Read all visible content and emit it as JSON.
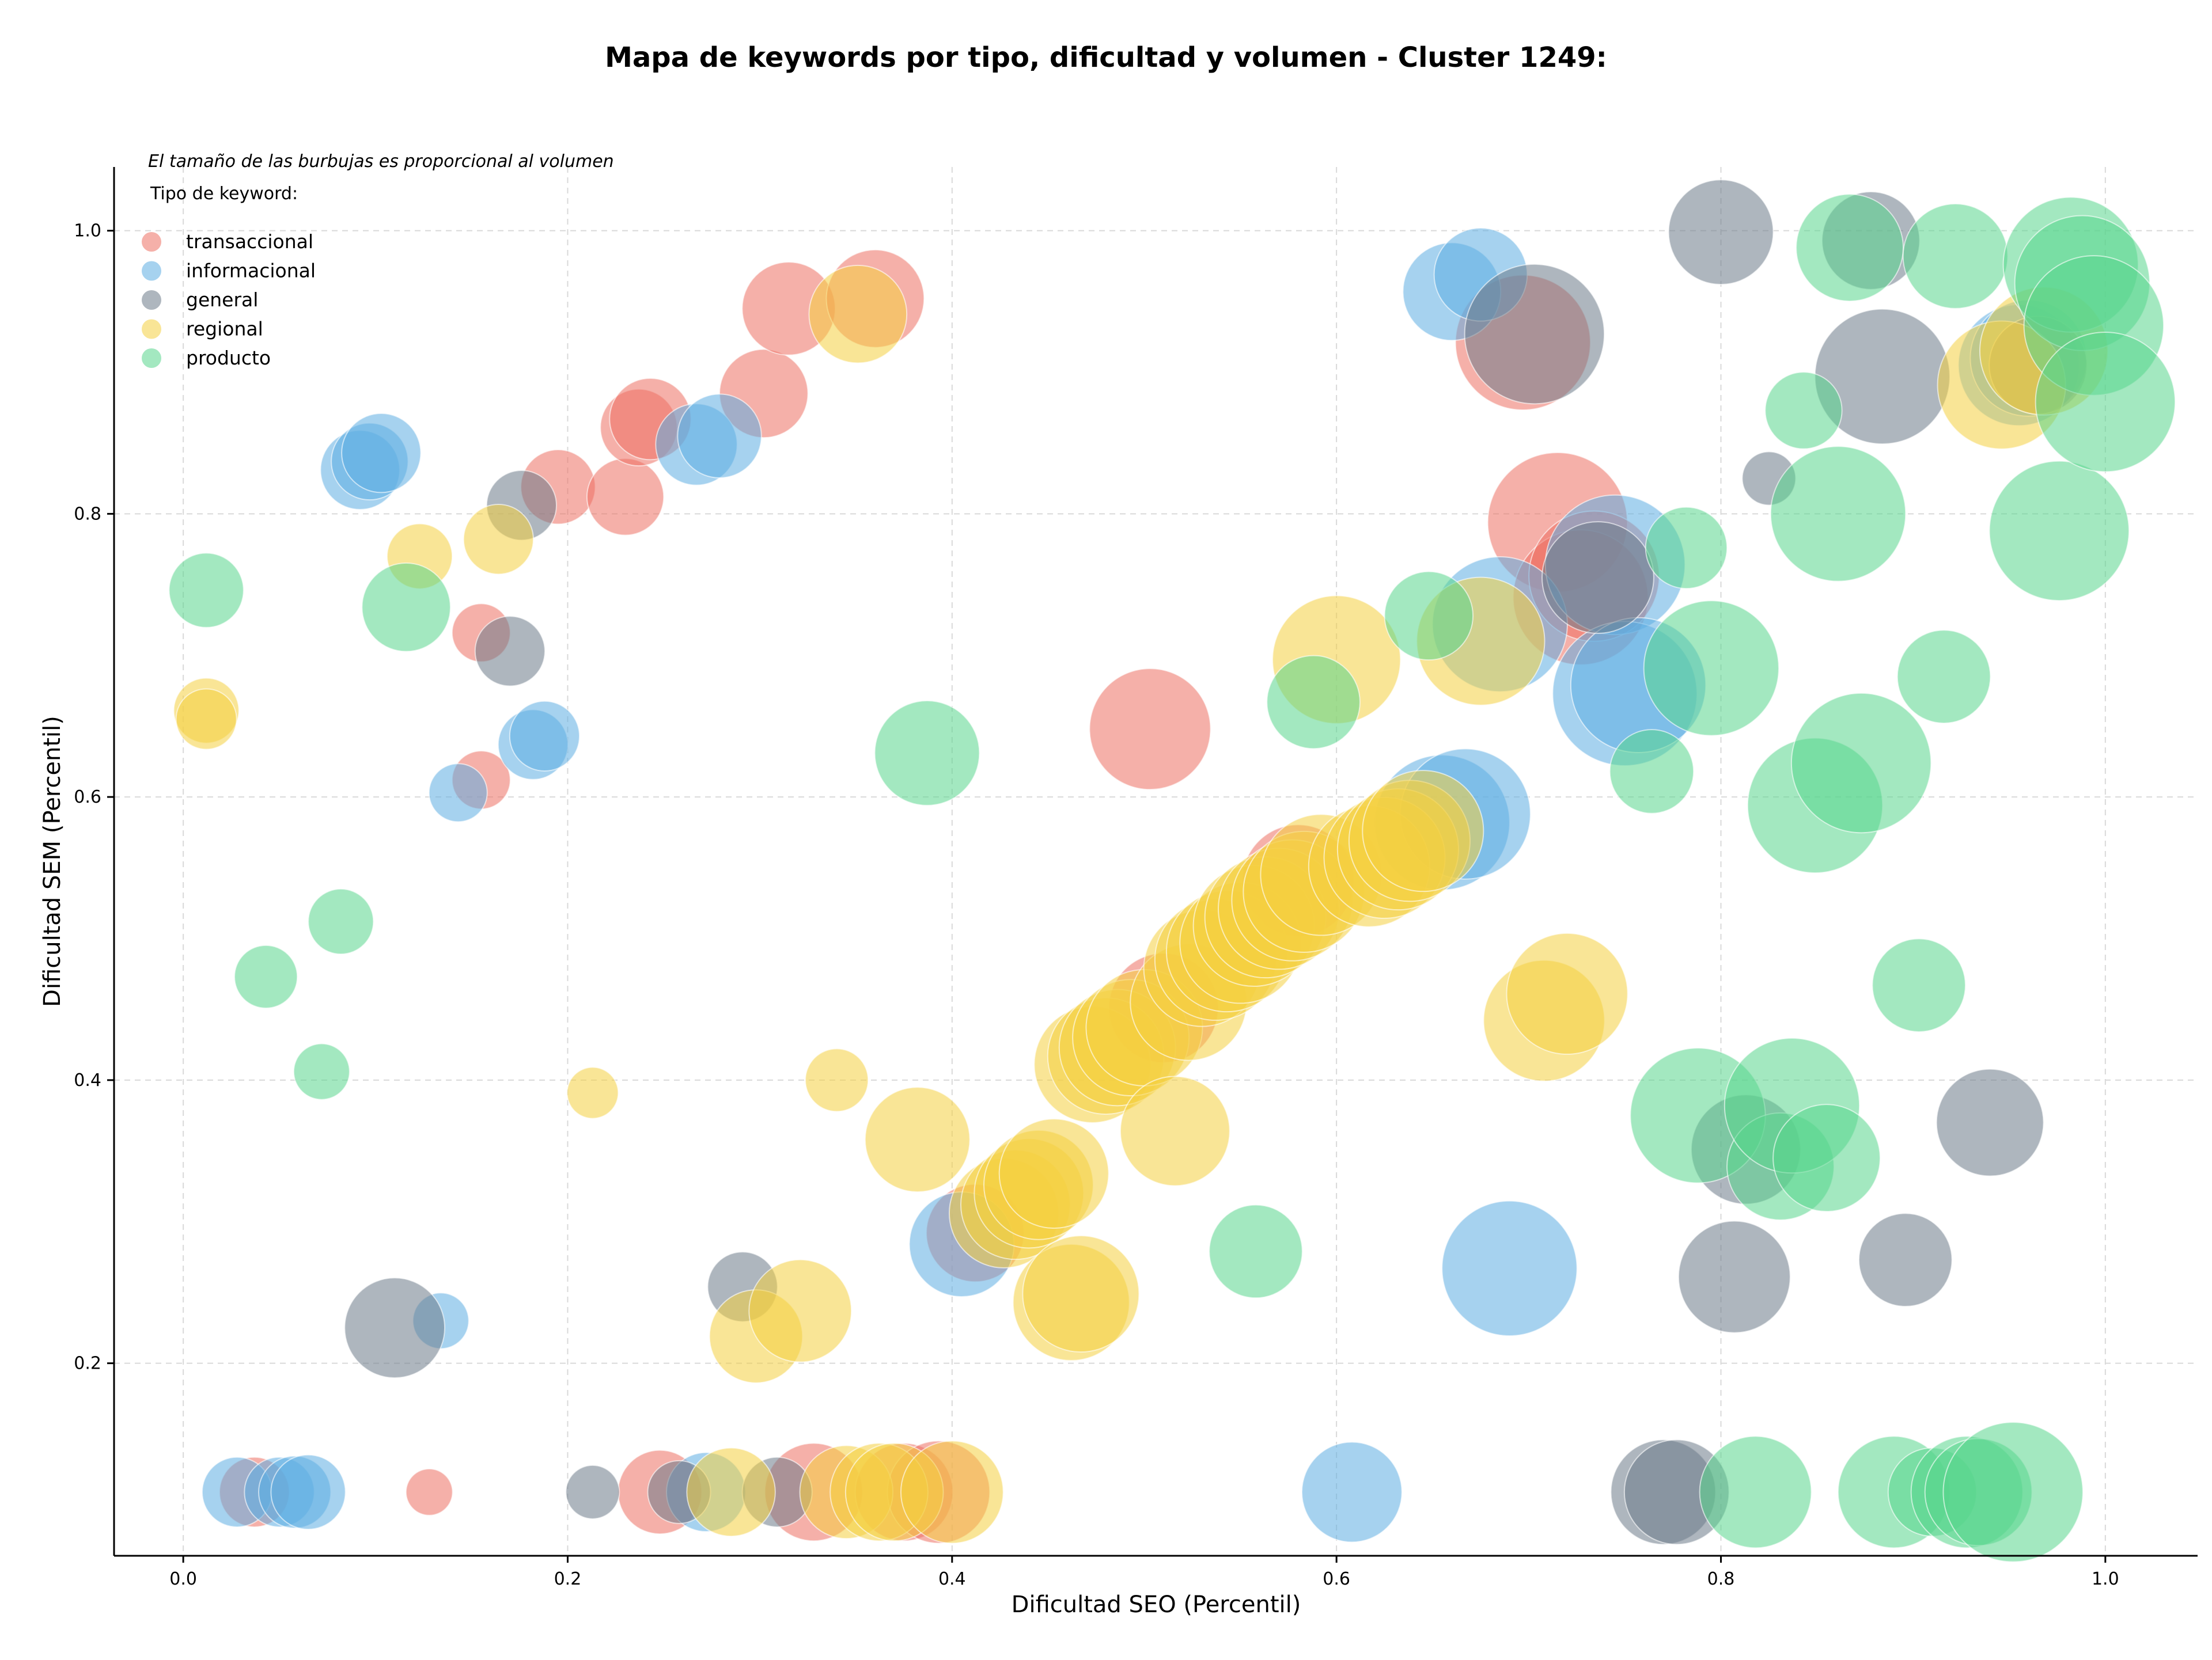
{
  "chart_data": {
    "type": "scatter",
    "title": "Mapa de keywords por tipo, dificultad y volumen - Cluster 1249:",
    "xlabel": "Dificultad SEO (Percentil)",
    "ylabel": "Dificultad SEM (Percentil)",
    "note": "El tamaño de las burbujas es proporcional al volumen",
    "legend_title": "Tipo de keyword:",
    "legend_position": "top-left",
    "grid": true,
    "xlim": [
      -0.036,
      1.048
    ],
    "ylim": [
      0.064,
      1.045
    ],
    "xticks": [
      0.0,
      0.2,
      0.4,
      0.6,
      0.8,
      1.0
    ],
    "yticks": [
      0.2,
      0.4,
      0.6,
      0.8,
      1.0
    ],
    "xtick_labels": [
      "0.0",
      "0.2",
      "0.4",
      "0.6",
      "0.8",
      "1.0"
    ],
    "ytick_labels": [
      "0.2",
      "0.4",
      "0.6",
      "0.8",
      "1.0"
    ],
    "size_encoding": "volume",
    "series": [
      {
        "name": "transaccional",
        "color": "#ec7063",
        "points": [
          {
            "x": 0.037,
            "y": 0.109,
            "r": 30
          },
          {
            "x": 0.128,
            "y": 0.109,
            "r": 20
          },
          {
            "x": 0.155,
            "y": 0.716,
            "r": 25
          },
          {
            "x": 0.155,
            "y": 0.612,
            "r": 25
          },
          {
            "x": 0.195,
            "y": 0.819,
            "r": 32
          },
          {
            "x": 0.23,
            "y": 0.812,
            "r": 33
          },
          {
            "x": 0.237,
            "y": 0.861,
            "r": 33
          },
          {
            "x": 0.243,
            "y": 0.867,
            "r": 35
          },
          {
            "x": 0.248,
            "y": 0.109,
            "r": 36
          },
          {
            "x": 0.302,
            "y": 0.885,
            "r": 38
          },
          {
            "x": 0.315,
            "y": 0.945,
            "r": 40
          },
          {
            "x": 0.36,
            "y": 0.952,
            "r": 42
          },
          {
            "x": 0.328,
            "y": 0.109,
            "r": 42
          },
          {
            "x": 0.375,
            "y": 0.109,
            "r": 42
          },
          {
            "x": 0.393,
            "y": 0.109,
            "r": 44
          },
          {
            "x": 0.503,
            "y": 0.648,
            "r": 52
          },
          {
            "x": 0.51,
            "y": 0.451,
            "r": 47
          },
          {
            "x": 0.58,
            "y": 0.541,
            "r": 48
          },
          {
            "x": 0.697,
            "y": 0.921,
            "r": 58
          },
          {
            "x": 0.715,
            "y": 0.794,
            "r": 60
          },
          {
            "x": 0.727,
            "y": 0.741,
            "r": 58
          },
          {
            "x": 0.734,
            "y": 0.756,
            "r": 56
          },
          {
            "x": 0.412,
            "y": 0.292,
            "r": 42
          }
        ]
      },
      {
        "name": "informacional",
        "color": "#5dade2",
        "points": [
          {
            "x": 0.028,
            "y": 0.109,
            "r": 30
          },
          {
            "x": 0.05,
            "y": 0.109,
            "r": 30
          },
          {
            "x": 0.058,
            "y": 0.109,
            "r": 31
          },
          {
            "x": 0.065,
            "y": 0.109,
            "r": 32
          },
          {
            "x": 0.092,
            "y": 0.831,
            "r": 34
          },
          {
            "x": 0.097,
            "y": 0.837,
            "r": 33
          },
          {
            "x": 0.103,
            "y": 0.843,
            "r": 34
          },
          {
            "x": 0.134,
            "y": 0.23,
            "r": 24
          },
          {
            "x": 0.143,
            "y": 0.603,
            "r": 25
          },
          {
            "x": 0.182,
            "y": 0.637,
            "r": 30
          },
          {
            "x": 0.188,
            "y": 0.643,
            "r": 30
          },
          {
            "x": 0.267,
            "y": 0.849,
            "r": 35
          },
          {
            "x": 0.279,
            "y": 0.855,
            "r": 36
          },
          {
            "x": 0.272,
            "y": 0.109,
            "r": 34
          },
          {
            "x": 0.405,
            "y": 0.284,
            "r": 45
          },
          {
            "x": 0.608,
            "y": 0.109,
            "r": 43
          },
          {
            "x": 0.66,
            "y": 0.957,
            "r": 42
          },
          {
            "x": 0.675,
            "y": 0.969,
            "r": 40
          },
          {
            "x": 0.655,
            "y": 0.582,
            "r": 58
          },
          {
            "x": 0.667,
            "y": 0.588,
            "r": 56
          },
          {
            "x": 0.685,
            "y": 0.722,
            "r": 58
          },
          {
            "x": 0.69,
            "y": 0.267,
            "r": 58
          },
          {
            "x": 0.745,
            "y": 0.764,
            "r": 60
          },
          {
            "x": 0.75,
            "y": 0.673,
            "r": 62
          },
          {
            "x": 0.757,
            "y": 0.679,
            "r": 58
          },
          {
            "x": 0.955,
            "y": 0.905,
            "r": 52
          },
          {
            "x": 0.96,
            "y": 0.91,
            "r": 50
          }
        ]
      },
      {
        "name": "general",
        "color": "#6c7a89",
        "points": [
          {
            "x": 0.11,
            "y": 0.225,
            "r": 43
          },
          {
            "x": 0.17,
            "y": 0.703,
            "r": 30
          },
          {
            "x": 0.176,
            "y": 0.806,
            "r": 30
          },
          {
            "x": 0.213,
            "y": 0.109,
            "r": 23
          },
          {
            "x": 0.258,
            "y": 0.109,
            "r": 27
          },
          {
            "x": 0.291,
            "y": 0.254,
            "r": 30
          },
          {
            "x": 0.309,
            "y": 0.109,
            "r": 30
          },
          {
            "x": 0.703,
            "y": 0.927,
            "r": 60
          },
          {
            "x": 0.736,
            "y": 0.755,
            "r": 48
          },
          {
            "x": 0.77,
            "y": 0.109,
            "r": 45
          },
          {
            "x": 0.777,
            "y": 0.109,
            "r": 45
          },
          {
            "x": 0.8,
            "y": 0.999,
            "r": 45
          },
          {
            "x": 0.807,
            "y": 0.261,
            "r": 48
          },
          {
            "x": 0.813,
            "y": 0.351,
            "r": 47
          },
          {
            "x": 0.825,
            "y": 0.825,
            "r": 23
          },
          {
            "x": 0.878,
            "y": 0.993,
            "r": 42
          },
          {
            "x": 0.884,
            "y": 0.897,
            "r": 58
          },
          {
            "x": 0.896,
            "y": 0.273,
            "r": 40
          },
          {
            "x": 0.94,
            "y": 0.37,
            "r": 46
          },
          {
            "x": 0.965,
            "y": 0.905,
            "r": 42
          }
        ]
      },
      {
        "name": "regional",
        "color": "#f4d03f",
        "points": [
          {
            "x": 0.012,
            "y": 0.661,
            "r": 28
          },
          {
            "x": 0.012,
            "y": 0.655,
            "r": 26
          },
          {
            "x": 0.123,
            "y": 0.77,
            "r": 28
          },
          {
            "x": 0.164,
            "y": 0.782,
            "r": 30
          },
          {
            "x": 0.213,
            "y": 0.391,
            "r": 22
          },
          {
            "x": 0.285,
            "y": 0.109,
            "r": 38
          },
          {
            "x": 0.298,
            "y": 0.219,
            "r": 40
          },
          {
            "x": 0.321,
            "y": 0.237,
            "r": 44
          },
          {
            "x": 0.34,
            "y": 0.4,
            "r": 27
          },
          {
            "x": 0.345,
            "y": 0.109,
            "r": 40
          },
          {
            "x": 0.351,
            "y": 0.941,
            "r": 42
          },
          {
            "x": 0.362,
            "y": 0.109,
            "r": 42
          },
          {
            "x": 0.37,
            "y": 0.109,
            "r": 42
          },
          {
            "x": 0.382,
            "y": 0.358,
            "r": 45
          },
          {
            "x": 0.4,
            "y": 0.109,
            "r": 44
          },
          {
            "x": 0.427,
            "y": 0.306,
            "r": 47
          },
          {
            "x": 0.433,
            "y": 0.312,
            "r": 47
          },
          {
            "x": 0.44,
            "y": 0.32,
            "r": 47
          },
          {
            "x": 0.445,
            "y": 0.326,
            "r": 47
          },
          {
            "x": 0.453,
            "y": 0.334,
            "r": 47
          },
          {
            "x": 0.462,
            "y": 0.243,
            "r": 50
          },
          {
            "x": 0.467,
            "y": 0.249,
            "r": 50
          },
          {
            "x": 0.473,
            "y": 0.411,
            "r": 50
          },
          {
            "x": 0.48,
            "y": 0.417,
            "r": 50
          },
          {
            "x": 0.486,
            "y": 0.423,
            "r": 50
          },
          {
            "x": 0.493,
            "y": 0.43,
            "r": 50
          },
          {
            "x": 0.5,
            "y": 0.437,
            "r": 50
          },
          {
            "x": 0.516,
            "y": 0.364,
            "r": 47
          },
          {
            "x": 0.523,
            "y": 0.455,
            "r": 50
          },
          {
            "x": 0.53,
            "y": 0.479,
            "r": 50
          },
          {
            "x": 0.537,
            "y": 0.485,
            "r": 52
          },
          {
            "x": 0.543,
            "y": 0.491,
            "r": 52
          },
          {
            "x": 0.55,
            "y": 0.497,
            "r": 52
          },
          {
            "x": 0.557,
            "y": 0.509,
            "r": 52
          },
          {
            "x": 0.563,
            "y": 0.515,
            "r": 52
          },
          {
            "x": 0.57,
            "y": 0.521,
            "r": 52
          },
          {
            "x": 0.577,
            "y": 0.527,
            "r": 52
          },
          {
            "x": 0.583,
            "y": 0.533,
            "r": 52
          },
          {
            "x": 0.592,
            "y": 0.545,
            "r": 52
          },
          {
            "x": 0.6,
            "y": 0.697,
            "r": 55
          },
          {
            "x": 0.617,
            "y": 0.551,
            "r": 52
          },
          {
            "x": 0.625,
            "y": 0.557,
            "r": 52
          },
          {
            "x": 0.632,
            "y": 0.563,
            "r": 52
          },
          {
            "x": 0.638,
            "y": 0.569,
            "r": 52
          },
          {
            "x": 0.645,
            "y": 0.576,
            "r": 52
          },
          {
            "x": 0.675,
            "y": 0.71,
            "r": 55
          },
          {
            "x": 0.708,
            "y": 0.442,
            "r": 52
          },
          {
            "x": 0.72,
            "y": 0.461,
            "r": 52
          },
          {
            "x": 0.946,
            "y": 0.891,
            "r": 55
          },
          {
            "x": 0.968,
            "y": 0.915,
            "r": 55
          }
        ]
      },
      {
        "name": "producto",
        "color": "#58d68d",
        "points": [
          {
            "x": 0.012,
            "y": 0.746,
            "r": 32
          },
          {
            "x": 0.043,
            "y": 0.473,
            "r": 27
          },
          {
            "x": 0.072,
            "y": 0.406,
            "r": 24
          },
          {
            "x": 0.082,
            "y": 0.512,
            "r": 28
          },
          {
            "x": 0.116,
            "y": 0.734,
            "r": 38
          },
          {
            "x": 0.387,
            "y": 0.631,
            "r": 45
          },
          {
            "x": 0.558,
            "y": 0.279,
            "r": 40
          },
          {
            "x": 0.588,
            "y": 0.667,
            "r": 40
          },
          {
            "x": 0.648,
            "y": 0.728,
            "r": 38
          },
          {
            "x": 0.764,
            "y": 0.618,
            "r": 36
          },
          {
            "x": 0.782,
            "y": 0.776,
            "r": 35
          },
          {
            "x": 0.788,
            "y": 0.375,
            "r": 58
          },
          {
            "x": 0.795,
            "y": 0.691,
            "r": 58
          },
          {
            "x": 0.818,
            "y": 0.109,
            "r": 48
          },
          {
            "x": 0.831,
            "y": 0.339,
            "r": 46
          },
          {
            "x": 0.837,
            "y": 0.382,
            "r": 58
          },
          {
            "x": 0.843,
            "y": 0.873,
            "r": 33
          },
          {
            "x": 0.849,
            "y": 0.594,
            "r": 58
          },
          {
            "x": 0.855,
            "y": 0.345,
            "r": 46
          },
          {
            "x": 0.861,
            "y": 0.8,
            "r": 58
          },
          {
            "x": 0.867,
            "y": 0.988,
            "r": 46
          },
          {
            "x": 0.873,
            "y": 0.624,
            "r": 60
          },
          {
            "x": 0.89,
            "y": 0.109,
            "r": 48
          },
          {
            "x": 0.903,
            "y": 0.467,
            "r": 40
          },
          {
            "x": 0.91,
            "y": 0.109,
            "r": 38
          },
          {
            "x": 0.916,
            "y": 0.685,
            "r": 40
          },
          {
            "x": 0.922,
            "y": 0.982,
            "r": 45
          },
          {
            "x": 0.928,
            "y": 0.109,
            "r": 48
          },
          {
            "x": 0.934,
            "y": 0.109,
            "r": 46
          },
          {
            "x": 0.952,
            "y": 0.109,
            "r": 60
          },
          {
            "x": 0.976,
            "y": 0.788,
            "r": 60
          },
          {
            "x": 0.982,
            "y": 0.976,
            "r": 58
          },
          {
            "x": 0.988,
            "y": 0.963,
            "r": 58
          },
          {
            "x": 0.994,
            "y": 0.933,
            "r": 60
          },
          {
            "x": 1.0,
            "y": 0.879,
            "r": 60
          }
        ]
      }
    ]
  }
}
